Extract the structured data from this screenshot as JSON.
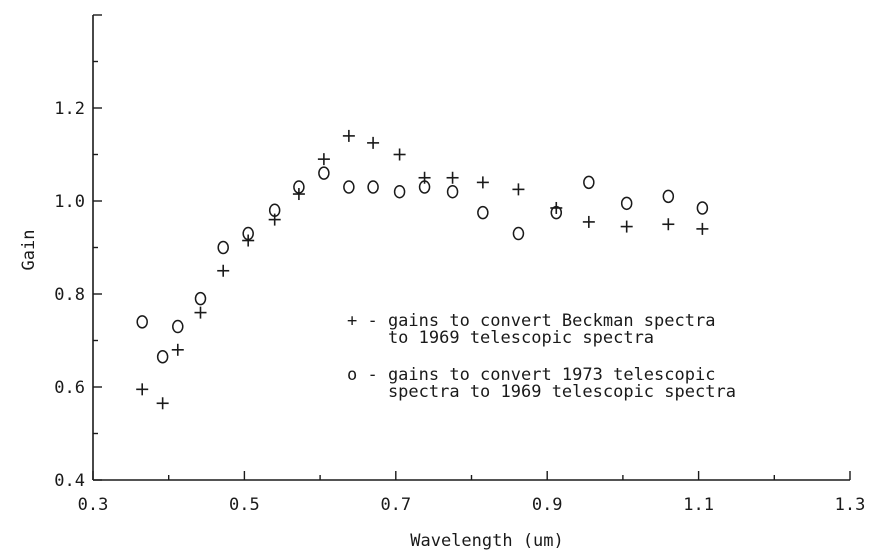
{
  "chart_data": {
    "type": "scatter",
    "title": "",
    "xlabel": "Wavelength (um)",
    "ylabel": "Gain",
    "xlim": [
      0.3,
      1.3
    ],
    "ylim": [
      0.4,
      1.4
    ],
    "xticks": [
      "0.3",
      "0.5",
      "0.7",
      "0.9",
      "1.1",
      "1.3"
    ],
    "yticks": [
      "0.4",
      "0.6",
      "0.8",
      "1.0",
      "1.2"
    ],
    "grid": false,
    "legend_position": "right",
    "series": [
      {
        "name": "gains to convert Beckman spectra to 1969 telescopic spectra",
        "marker": "plus",
        "symbol": "+",
        "legend_lines": [
          "+ - gains to convert Beckman spectra",
          "    to 1969 telescopic spectra"
        ],
        "points": [
          [
            0.365,
            0.595
          ],
          [
            0.392,
            0.565
          ],
          [
            0.412,
            0.68
          ],
          [
            0.442,
            0.76
          ],
          [
            0.472,
            0.85
          ],
          [
            0.505,
            0.915
          ],
          [
            0.54,
            0.96
          ],
          [
            0.572,
            1.015
          ],
          [
            0.605,
            1.09
          ],
          [
            0.638,
            1.14
          ],
          [
            0.67,
            1.125
          ],
          [
            0.705,
            1.1
          ],
          [
            0.738,
            1.05
          ],
          [
            0.775,
            1.05
          ],
          [
            0.815,
            1.04
          ],
          [
            0.862,
            1.025
          ],
          [
            0.912,
            0.985
          ],
          [
            0.955,
            0.955
          ],
          [
            1.005,
            0.945
          ],
          [
            1.06,
            0.95
          ],
          [
            1.105,
            0.94
          ]
        ]
      },
      {
        "name": "gains to convert 1973 telescopic spectra to 1969 telescopic spectra",
        "marker": "circle",
        "symbol": "o",
        "legend_lines": [
          "o - gains to convert 1973 telescopic",
          "    spectra to 1969 telescopic spectra"
        ],
        "points": [
          [
            0.365,
            0.74
          ],
          [
            0.392,
            0.665
          ],
          [
            0.412,
            0.73
          ],
          [
            0.442,
            0.79
          ],
          [
            0.472,
            0.9
          ],
          [
            0.505,
            0.93
          ],
          [
            0.54,
            0.98
          ],
          [
            0.572,
            1.03
          ],
          [
            0.605,
            1.06
          ],
          [
            0.638,
            1.03
          ],
          [
            0.67,
            1.03
          ],
          [
            0.705,
            1.02
          ],
          [
            0.738,
            1.03
          ],
          [
            0.775,
            1.02
          ],
          [
            0.815,
            0.975
          ],
          [
            0.862,
            0.93
          ],
          [
            0.912,
            0.975
          ],
          [
            0.955,
            1.04
          ],
          [
            1.005,
            0.995
          ],
          [
            1.06,
            1.01
          ],
          [
            1.105,
            0.985
          ]
        ]
      }
    ]
  }
}
